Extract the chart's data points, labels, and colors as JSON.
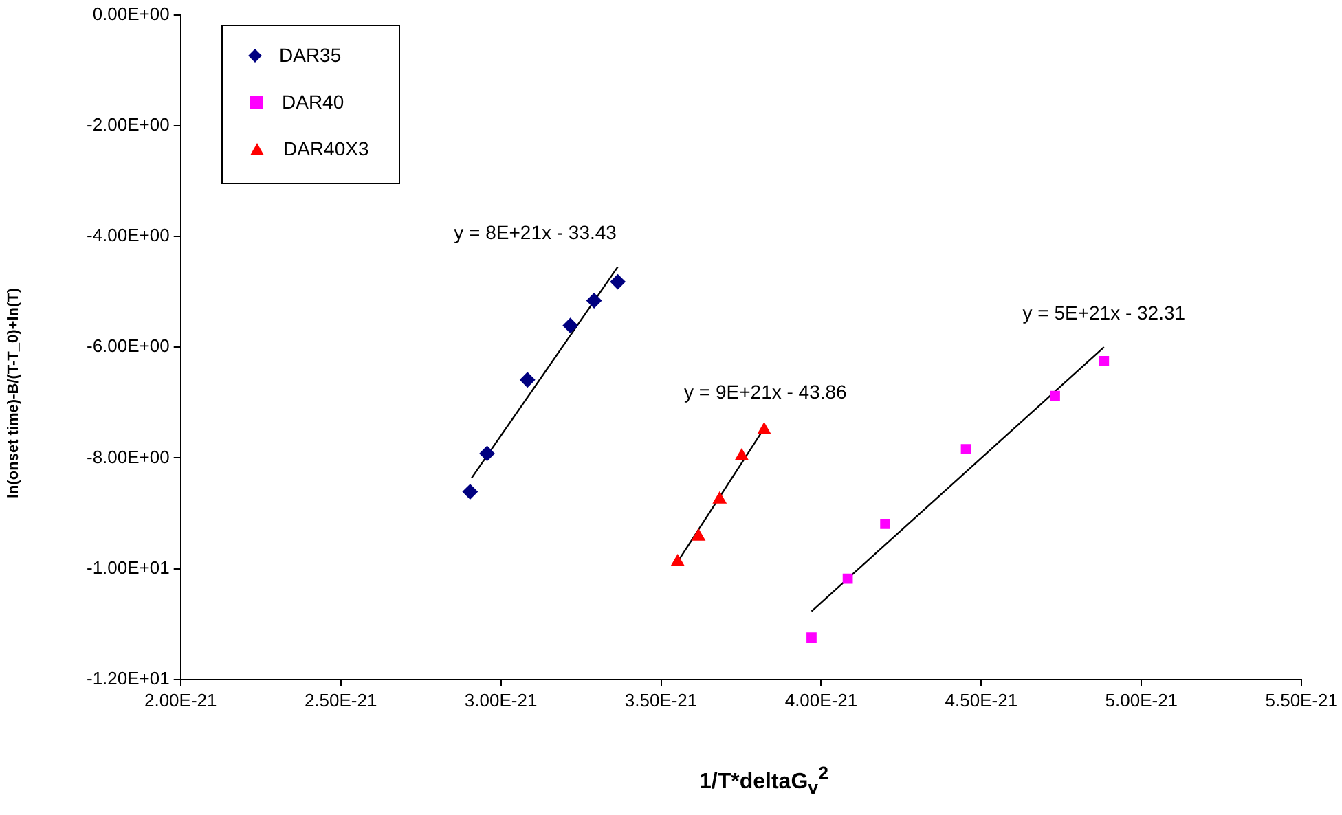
{
  "chart_data": {
    "type": "scatter",
    "xlabel": "1/T*deltaG$_{v}$$^{2}$",
    "ylabel": "ln(onset time)-B/(T-T_0)+ln(T)",
    "xlim": [
      2e-21,
      5.5e-21
    ],
    "xticks": [
      {
        "value": 2e-21,
        "label": "2.00E-21"
      },
      {
        "value": 2.5e-21,
        "label": "2.50E-21"
      },
      {
        "value": 3e-21,
        "label": "3.00E-21"
      },
      {
        "value": 3.5e-21,
        "label": "3.50E-21"
      },
      {
        "value": 4e-21,
        "label": "4.00E-21"
      },
      {
        "value": 4.5e-21,
        "label": "4.50E-21"
      },
      {
        "value": 5e-21,
        "label": "5.00E-21"
      },
      {
        "value": 5.5e-21,
        "label": "5.50E-21"
      }
    ],
    "ylim": [
      -12,
      0
    ],
    "yticks": [
      {
        "value": -12,
        "label": "-1.20E+01"
      },
      {
        "value": -10,
        "label": "-1.00E+01"
      },
      {
        "value": -8,
        "label": "-8.00E+00"
      },
      {
        "value": -6,
        "label": "-6.00E+00"
      },
      {
        "value": -4,
        "label": "-4.00E+00"
      },
      {
        "value": -2,
        "label": "-2.00E+00"
      },
      {
        "value": 0,
        "label": "0.00E+00"
      }
    ],
    "grid": false,
    "legend": "top left",
    "series": [
      {
        "name": "DAR35",
        "color": "#000080",
        "marker": "diamond",
        "x": [
          2.904e-21,
          2.957e-21,
          3.083e-21,
          3.217e-21,
          3.291e-21,
          3.365e-21
        ],
        "values": [
          -8.61,
          -7.92,
          -6.59,
          -5.61,
          -5.16,
          -4.82
        ]
      },
      {
        "name": "DAR40",
        "color": "#ff00ff",
        "marker": "square",
        "x": [
          3.97e-21,
          4.083e-21,
          4.2e-21,
          4.452e-21,
          4.73e-21,
          4.883e-21
        ],
        "values": [
          -11.24,
          -10.18,
          -9.19,
          -7.84,
          -6.88,
          -6.25
        ]
      },
      {
        "name": "DAR40X3",
        "color": "#ff0000",
        "marker": "triangle",
        "x": [
          3.552e-21,
          3.617e-21,
          3.683e-21,
          3.752e-21,
          3.822e-21
        ],
        "values": [
          -9.88,
          -9.42,
          -8.75,
          -7.97,
          -7.5
        ]
      },
      {
        "type": "line",
        "color": "#000000",
        "marker": "none",
        "x": [
          2.909e-21,
          3.365e-21
        ],
        "values": [
          -8.36,
          -4.55
        ]
      },
      {
        "type": "line",
        "color": "#000000",
        "marker": "none",
        "x": [
          3.548e-21,
          3.826e-21
        ],
        "values": [
          -9.91,
          -7.43
        ]
      },
      {
        "type": "line",
        "color": "#000000",
        "marker": "none",
        "x": [
          3.97e-21,
          4.883e-21
        ],
        "values": [
          -10.77,
          -6.0
        ]
      }
    ],
    "annotations": [
      "y = 8E+21x - 33.43",
      "y = 9E+21x - 43.86",
      "y = 5E+21x - 32.31"
    ]
  }
}
